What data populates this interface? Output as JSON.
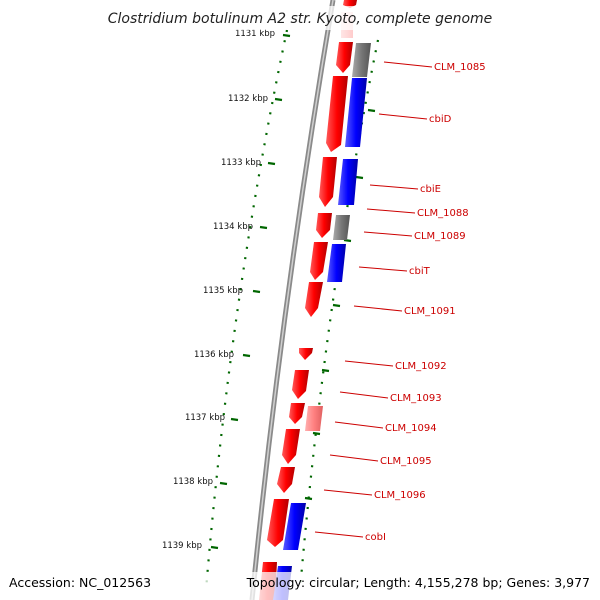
{
  "title": "Clostridium botulinum A2 str. Kyoto, complete genome",
  "footer": {
    "accession": "Accession: NC_012563",
    "topology": "Topology: circular; Length: 4,155,278 bp; Genes: 3,977"
  },
  "ruler_labels": [
    "1131 kbp",
    "1132 kbp",
    "1133 kbp",
    "1134 kbp",
    "1135 kbp",
    "1136 kbp",
    "1137 kbp",
    "1138 kbp",
    "1139 kbp"
  ],
  "gene_labels": [
    "CLM_1085",
    "cbiD",
    "cbiE",
    "CLM_1088",
    "CLM_1089",
    "cbiT",
    "CLM_1091",
    "CLM_1092",
    "CLM_1093",
    "CLM_1094",
    "CLM_1095",
    "CLM_1096",
    "cobI"
  ],
  "colors": {
    "forward_strand": "#ff0000",
    "cog_blue": "#0000ff",
    "cog_gray": "#777777",
    "pseudo_pink": "#ff8080",
    "label_text": "#cc0000",
    "ruler_dots": "#006600",
    "backbone": "#888888"
  }
}
